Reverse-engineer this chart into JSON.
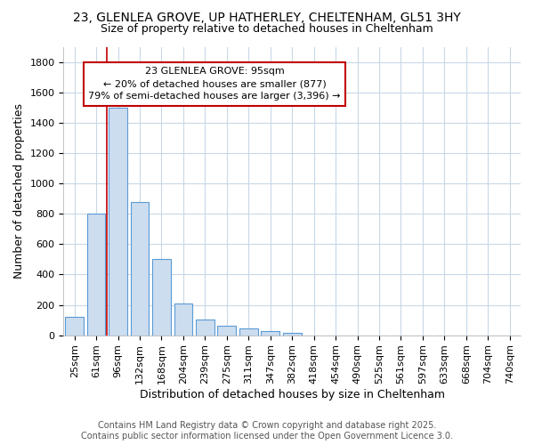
{
  "title_line1": "23, GLENLEA GROVE, UP HATHERLEY, CHELTENHAM, GL51 3HY",
  "title_line2": "Size of property relative to detached houses in Cheltenham",
  "xlabel": "Distribution of detached houses by size in Cheltenham",
  "ylabel": "Number of detached properties",
  "footer_line1": "Contains HM Land Registry data © Crown copyright and database right 2025.",
  "footer_line2": "Contains public sector information licensed under the Open Government Licence 3.0.",
  "categories": [
    "25sqm",
    "61sqm",
    "96sqm",
    "132sqm",
    "168sqm",
    "204sqm",
    "239sqm",
    "275sqm",
    "311sqm",
    "347sqm",
    "382sqm",
    "418sqm",
    "454sqm",
    "490sqm",
    "525sqm",
    "561sqm",
    "597sqm",
    "633sqm",
    "668sqm",
    "704sqm",
    "740sqm"
  ],
  "values": [
    120,
    800,
    1500,
    880,
    500,
    210,
    105,
    65,
    45,
    30,
    18,
    0,
    0,
    0,
    0,
    0,
    0,
    0,
    0,
    0,
    0
  ],
  "bar_color": "#ccddf0",
  "bar_edge_color": "#5b9bd5",
  "vline_color": "#c00000",
  "vline_x_index": 2,
  "annotation_line1": "23 GLENLEA GROVE: 95sqm",
  "annotation_line2": "← 20% of detached houses are smaller (877)",
  "annotation_line3": "79% of semi-detached houses are larger (3,396) →",
  "annotation_box_color": "white",
  "annotation_border_color": "#c00000",
  "ylim": [
    0,
    1900
  ],
  "yticks": [
    0,
    200,
    400,
    600,
    800,
    1000,
    1200,
    1400,
    1600,
    1800
  ],
  "bg_color": "#ffffff",
  "plot_bg_color": "#ffffff",
  "grid_color": "#c8d8e8",
  "title_fontsize": 10,
  "subtitle_fontsize": 9,
  "axis_label_fontsize": 9,
  "tick_fontsize": 8,
  "footer_fontsize": 7,
  "annotation_fontsize": 8
}
